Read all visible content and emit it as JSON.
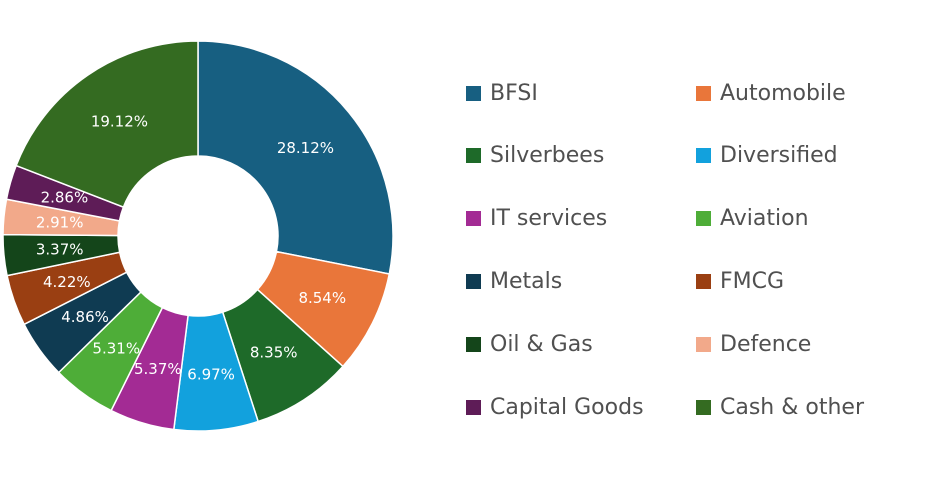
{
  "chart_data": {
    "type": "pie",
    "donut": true,
    "legend_position": "right",
    "slices": [
      {
        "label": "BFSI",
        "value": 28.12,
        "value_label": "28.12%",
        "color": "#175f81"
      },
      {
        "label": "Automobile",
        "value": 8.54,
        "value_label": "8.54%",
        "color": "#e9763a"
      },
      {
        "label": "Silverbees",
        "value": 8.35,
        "value_label": "8.35%",
        "color": "#1e6a29"
      },
      {
        "label": "Diversified",
        "value": 6.97,
        "value_label": "6.97%",
        "color": "#12a1dd"
      },
      {
        "label": "IT services",
        "value": 5.37,
        "value_label": "5.37%",
        "color": "#a32b94"
      },
      {
        "label": "Aviation",
        "value": 5.31,
        "value_label": "5.31%",
        "color": "#4ead38"
      },
      {
        "label": "Metals",
        "value": 4.86,
        "value_label": "4.86%",
        "color": "#0f3b52"
      },
      {
        "label": "FMCG",
        "value": 4.22,
        "value_label": "4.22%",
        "color": "#9a3f12"
      },
      {
        "label": "Oil & Gas",
        "value": 3.37,
        "value_label": "3.37%",
        "color": "#14451a"
      },
      {
        "label": "Defence",
        "value": 2.91,
        "value_label": "2.91%",
        "color": "#f2a98a"
      },
      {
        "label": "Capital Goods",
        "value": 2.86,
        "value_label": "2.86%",
        "color": "#5e1c57"
      },
      {
        "label": "Cash & other",
        "value": 19.12,
        "value_label": "19.12%",
        "color": "#346b21"
      }
    ]
  }
}
